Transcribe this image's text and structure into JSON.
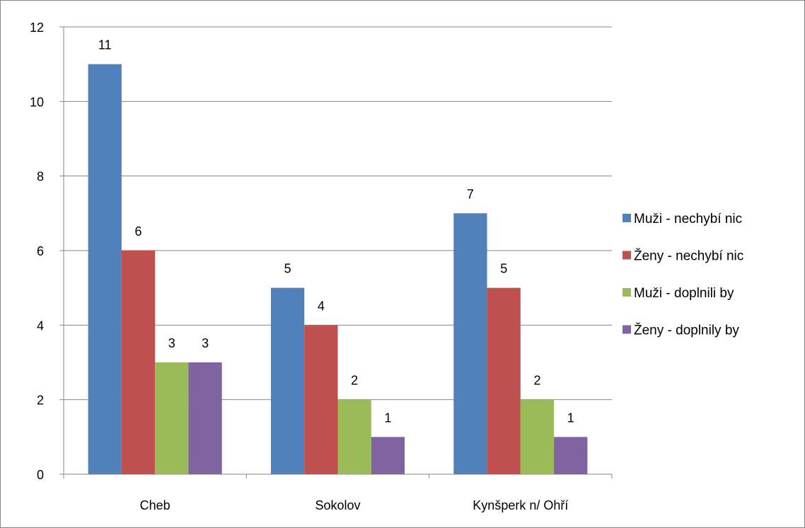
{
  "chart_data": {
    "type": "bar",
    "categories": [
      "Cheb",
      "Sokolov",
      "Kynšperk n/ Ohří"
    ],
    "series": [
      {
        "name": "Muži - nechybí nic",
        "color": "#4F81BD",
        "values": [
          11,
          5,
          7
        ]
      },
      {
        "name": "Ženy - nechybí nic",
        "color": "#C0504D",
        "values": [
          6,
          4,
          5
        ]
      },
      {
        "name": "Muži - doplnili by",
        "color": "#9BBB59",
        "values": [
          3,
          2,
          2
        ]
      },
      {
        "name": "Ženy - doplnily by",
        "color": "#8064A2",
        "values": [
          3,
          1,
          1
        ]
      }
    ],
    "ylim": [
      0,
      12
    ],
    "yticks": [
      "0",
      "2",
      "4",
      "6",
      "8",
      "10",
      "12"
    ],
    "grid": true,
    "legend_position": "right",
    "data_labels": true
  }
}
